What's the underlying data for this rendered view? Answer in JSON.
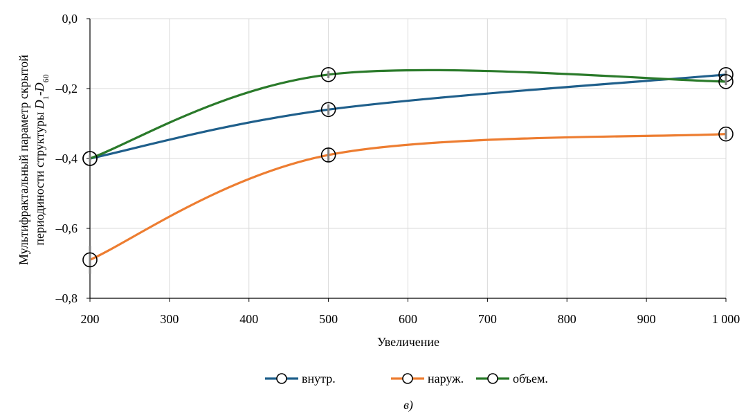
{
  "chart_data": {
    "type": "line",
    "xlabel": "Увеличение",
    "ylabel_line1": "Мультифрактальный параметр скрытой",
    "ylabel_line2": "периодиности структуры ",
    "ylabel_math": {
      "d1_base": "D",
      "d1_sub": "1",
      "sep": "-",
      "d2_base": "D",
      "d2_sub": "60"
    },
    "x": [
      200,
      500,
      1000
    ],
    "xlim": [
      200,
      1000
    ],
    "ylim": [
      -0.8,
      0.0
    ],
    "x_ticks": [
      200,
      300,
      400,
      500,
      600,
      700,
      800,
      900,
      1000
    ],
    "x_tick_labels": [
      "200",
      "300",
      "400",
      "500",
      "600",
      "700",
      "800",
      "900",
      "1 000"
    ],
    "y_ticks": [
      0.0,
      -0.2,
      -0.4,
      -0.6,
      -0.8
    ],
    "y_tick_labels": [
      "0,0",
      "–0,2",
      "–0,4",
      "–0,6",
      "–0,8"
    ],
    "grid": true,
    "legend_position": "bottom",
    "series": [
      {
        "name": "внутр.",
        "color": "#1f5f8b",
        "values": [
          -0.4,
          -0.26,
          -0.16
        ],
        "errors": [
          0.01,
          0.015,
          0.012
        ]
      },
      {
        "name": "наруж.",
        "color": "#ed7d31",
        "values": [
          -0.69,
          -0.39,
          -0.33
        ],
        "errors": [
          0.04,
          0.02,
          0.015
        ]
      },
      {
        "name": "объем.",
        "color": "#2a7a2a",
        "values": [
          -0.4,
          -0.16,
          -0.18
        ],
        "errors": [
          0.01,
          0.01,
          0.01
        ]
      }
    ],
    "caption": "в)"
  }
}
